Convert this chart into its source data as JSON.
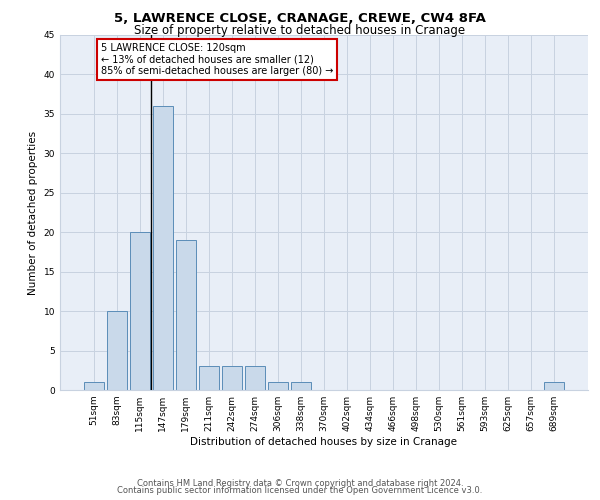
{
  "title": "5, LAWRENCE CLOSE, CRANAGE, CREWE, CW4 8FA",
  "subtitle": "Size of property relative to detached houses in Cranage",
  "xlabel": "Distribution of detached houses by size in Cranage",
  "ylabel": "Number of detached properties",
  "bin_labels": [
    "51sqm",
    "83sqm",
    "115sqm",
    "147sqm",
    "179sqm",
    "211sqm",
    "242sqm",
    "274sqm",
    "306sqm",
    "338sqm",
    "370sqm",
    "402sqm",
    "434sqm",
    "466sqm",
    "498sqm",
    "530sqm",
    "561sqm",
    "593sqm",
    "625sqm",
    "657sqm",
    "689sqm"
  ],
  "bar_values": [
    1,
    10,
    20,
    36,
    19,
    3,
    3,
    3,
    1,
    1,
    0,
    0,
    0,
    0,
    0,
    0,
    0,
    0,
    0,
    0,
    1
  ],
  "bar_color": "#c9d9ea",
  "bar_edge_color": "#5b8db8",
  "annotation_text": "5 LAWRENCE CLOSE: 120sqm\n← 13% of detached houses are smaller (12)\n85% of semi-detached houses are larger (80) →",
  "annotation_box_color": "#ffffff",
  "annotation_box_edge_color": "#cc0000",
  "vline_x": 2.5,
  "ylim": [
    0,
    45
  ],
  "yticks": [
    0,
    5,
    10,
    15,
    20,
    25,
    30,
    35,
    40,
    45
  ],
  "footer_line1": "Contains HM Land Registry data © Crown copyright and database right 2024.",
  "footer_line2": "Contains public sector information licensed under the Open Government Licence v3.0.",
  "background_color": "#e8eef7",
  "grid_color": "#c8d2e0",
  "title_fontsize": 9.5,
  "subtitle_fontsize": 8.5,
  "axis_label_fontsize": 7.5,
  "tick_fontsize": 6.5,
  "annotation_fontsize": 7,
  "footer_fontsize": 6.0
}
